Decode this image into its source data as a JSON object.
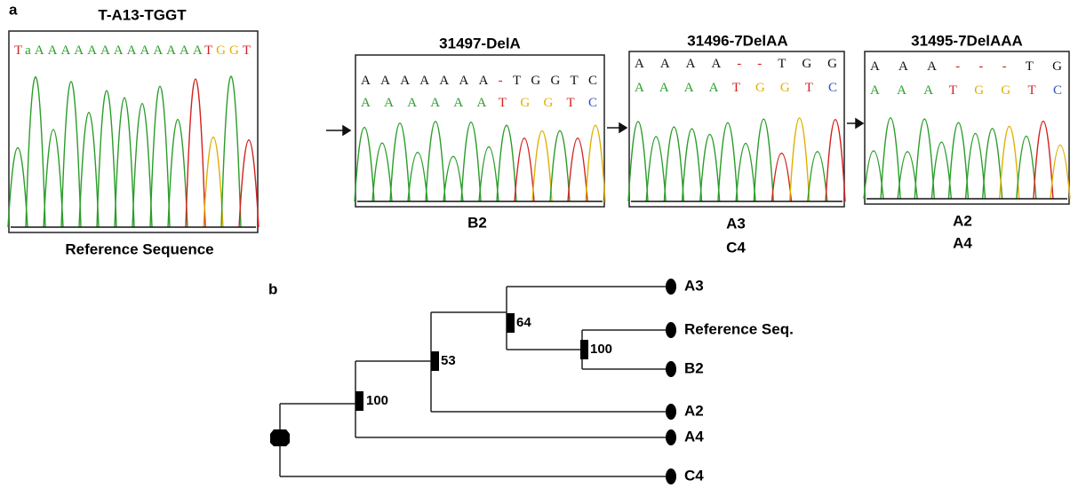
{
  "panel_a": {
    "label": "a",
    "panels": [
      {
        "title": "T-A13-TGGT",
        "sequences": [
          "TaAAAAAAAAAAAAATGGT"
        ],
        "captions": [
          "Reference Sequence"
        ]
      },
      {
        "title": "31497-DelA",
        "sequences": [
          "AAAAAAA-TGGTC",
          "AAAAAATGGTC"
        ],
        "captions": [
          "B2"
        ]
      },
      {
        "title": "31496-7DelAA",
        "sequences": [
          "AAAA--TGG",
          "AAAATGGTC"
        ],
        "captions": [
          "A3",
          "C4"
        ]
      },
      {
        "title": "31495-7DelAAA",
        "sequences": [
          "AAA---TG",
          "AAATGGTC"
        ],
        "captions": [
          "A2",
          "A4"
        ]
      }
    ]
  },
  "panel_b": {
    "label": "b",
    "leaves": [
      "A3",
      "Reference Seq.",
      "B2",
      "A2",
      "A4",
      "C4"
    ],
    "node_labels": [
      "100",
      "53",
      "64",
      "100"
    ]
  }
}
